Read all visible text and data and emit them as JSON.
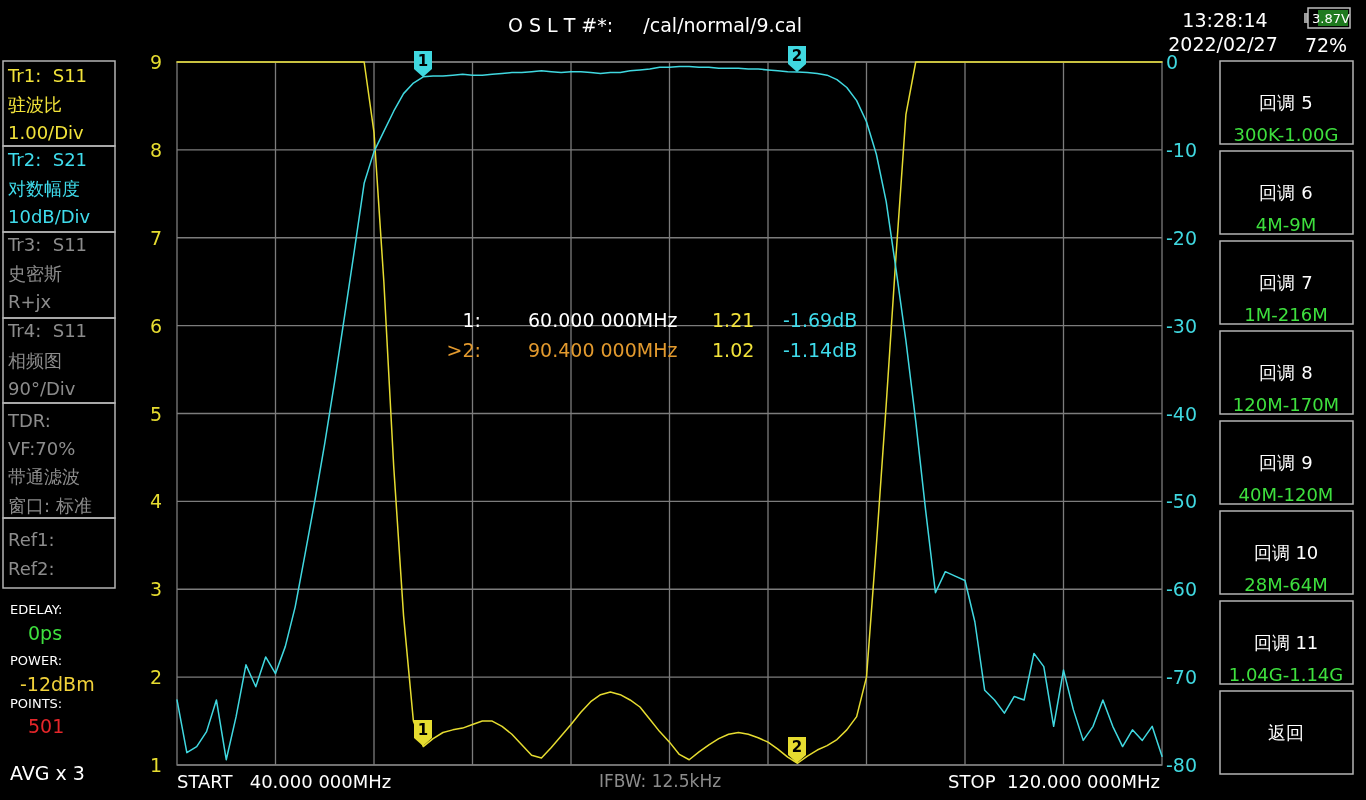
{
  "chart_data": {
    "type": "line",
    "title": "O S L T #*:     /cal/normal/9.cal",
    "categories": [
      null,
      null,
      null,
      null,
      null,
      null,
      null,
      null,
      null,
      null,
      null,
      null,
      null,
      null,
      null,
      null,
      null,
      null,
      null,
      null,
      null,
      null,
      null,
      null,
      null,
      null,
      null,
      null,
      null,
      null,
      null,
      null,
      null,
      null,
      null,
      null,
      null,
      null,
      null,
      null,
      null,
      null,
      null,
      null,
      null,
      null,
      null,
      null,
      null,
      null,
      null,
      null,
      null,
      null,
      null,
      null,
      null,
      null,
      null,
      null,
      null,
      null,
      null,
      null,
      null,
      null,
      null,
      null,
      null,
      null,
      null,
      null,
      null,
      null,
      null,
      null,
      null,
      null,
      null,
      null,
      null,
      null,
      null,
      null,
      null,
      null,
      null,
      null,
      null,
      null,
      null,
      null,
      null,
      null,
      null,
      null,
      null,
      null,
      null,
      null,
      null
    ],
    "ylim": [
      1,
      9
    ],
    "yticks": [
      1,
      2,
      3,
      4,
      5,
      6,
      7,
      8,
      9
    ],
    "y2lim": [
      -80,
      0
    ],
    "y2ticks": [
      -80,
      -70,
      -60,
      -50,
      -40,
      -30,
      -20,
      -10,
      0
    ],
    "grid": true,
    "series": [
      {
        "color": "#e6dc30",
        "values": [
          9,
          9,
          9,
          9,
          9,
          9,
          9,
          9,
          9,
          9,
          9,
          9,
          9,
          9,
          9,
          9,
          9,
          9,
          9,
          9,
          8.2,
          6.5,
          4.4,
          2.7,
          1.5,
          1.21,
          1.3,
          1.37,
          1.4,
          1.42,
          1.46,
          1.5,
          1.5,
          1.44,
          1.35,
          1.23,
          1.11,
          1.08,
          1.2,
          1.33,
          1.46,
          1.6,
          1.72,
          1.8,
          1.83,
          1.8,
          1.74,
          1.66,
          1.52,
          1.38,
          1.26,
          1.12,
          1.06,
          1.15,
          1.23,
          1.3,
          1.35,
          1.37,
          1.35,
          1.31,
          1.26,
          1.18,
          1.09,
          1.02,
          1.1,
          1.17,
          1.22,
          1.29,
          1.4,
          1.55,
          2.0,
          3.5,
          5.1,
          6.8,
          8.4,
          9,
          9,
          9,
          9,
          9,
          9,
          9,
          9,
          9,
          9,
          9,
          9,
          9,
          9,
          9,
          9,
          9,
          9,
          9,
          9,
          9,
          9,
          9,
          9,
          9,
          9
        ]
      },
      {
        "color": "#40d8e0",
        "axis": "y2",
        "values": [
          -72.6,
          -78.6,
          -77.9,
          -76.2,
          -72.6,
          -79.4,
          -74.5,
          -68.6,
          -71.1,
          -67.7,
          -69.6,
          -66.5,
          -62.0,
          -56.0,
          -49.9,
          -43.4,
          -36.4,
          -29.0,
          -21.5,
          -13.8,
          -10.2,
          -7.9,
          -5.6,
          -3.6,
          -2.4,
          -1.69,
          -1.6,
          -1.6,
          -1.5,
          -1.4,
          -1.5,
          -1.5,
          -1.4,
          -1.3,
          -1.2,
          -1.2,
          -1.1,
          -1.0,
          -1.1,
          -1.2,
          -1.1,
          -1.1,
          -1.2,
          -1.3,
          -1.2,
          -1.2,
          -1.0,
          -0.9,
          -0.8,
          -0.6,
          -0.6,
          -0.5,
          -0.5,
          -0.6,
          -0.6,
          -0.7,
          -0.7,
          -0.7,
          -0.8,
          -0.8,
          -0.9,
          -1.0,
          -1.1,
          -1.14,
          -1.2,
          -1.3,
          -1.5,
          -2.0,
          -2.9,
          -4.4,
          -6.8,
          -10.5,
          -15.9,
          -23.6,
          -31.7,
          -40.9,
          -51.0,
          -60.4,
          -58.0,
          -58.5,
          -59.0,
          -63.7,
          -71.5,
          -72.6,
          -74.1,
          -72.2,
          -72.6,
          -67.3,
          -68.8,
          -75.6,
          -69.2,
          -73.7,
          -77.2,
          -75.6,
          -72.6,
          -75.6,
          -77.9,
          -76.0,
          -77.2,
          -75.6,
          -79.0
        ]
      }
    ],
    "annotations": [
      "13:28:14",
      "2022/02/27",
      "3.87V",
      "72%",
      "Tr1:  S11",
      "驻波比",
      "1.00/Div",
      "Tr2:  S21",
      "对数幅度",
      "10dB/Div",
      "Tr3:  S11",
      "史密斯",
      "R+jx",
      "Tr4:  S11",
      "相频图",
      "90°/Div",
      "TDR:",
      "VF:70%",
      "带通滤波",
      "窗口: 标准",
      "Ref1:",
      "Ref2:",
      "EDELAY:",
      "0ps",
      "POWER:",
      "-12dBm",
      "POINTS:",
      "501",
      "AVG x 3",
      "1:",
      "60.000 000MHz",
      "1.21",
      "-1.69dB",
      ">2:",
      "90.400 000MHz",
      "1.02",
      "-1.14dB",
      "回调 5",
      "300K-1.00G",
      "回调 6",
      "4M-9M",
      "回调 7",
      "1M-216M",
      "回调 8",
      "120M-170M",
      "回调 9",
      "40M-120M",
      "回调 10",
      "28M-64M",
      "回调 11",
      "1.04G-1.14G",
      "返回",
      "START   40.000 000MHz",
      "IFBW: 12.5kHz",
      "STOP  120.000 000MHz",
      "1",
      "2",
      "1",
      "2"
    ]
  }
}
